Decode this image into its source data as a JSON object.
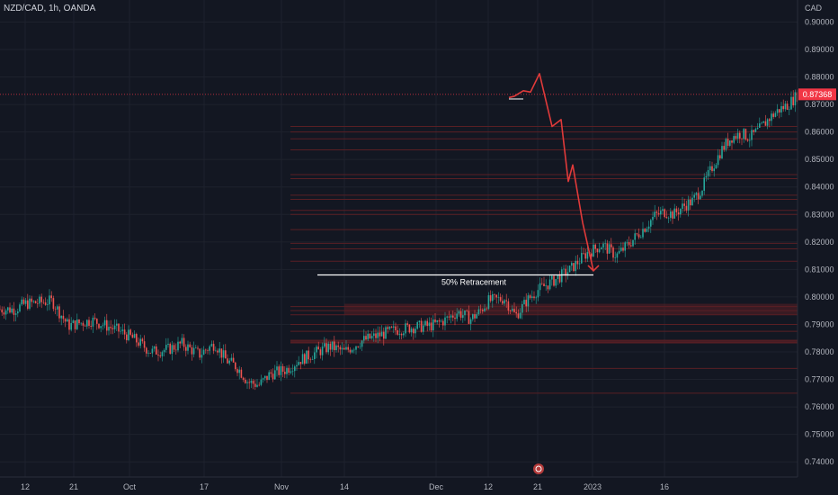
{
  "header": {
    "symbol_title": "NZD/CAD, 1h, OANDA",
    "currency": "CAD"
  },
  "colors": {
    "background": "#131722",
    "up": "#26a69a",
    "down": "#ef5350",
    "projection": "#e03a3a",
    "zone": "#5a1f24",
    "current_price_bg": "#f23645",
    "grid": "#1e222d"
  },
  "chart_data": {
    "type": "candlestick",
    "title": "NZD/CAD, 1h, OANDA",
    "y_unit": "CAD",
    "ylim": [
      0.7345,
      0.908
    ],
    "y_ticks": [
      0.74,
      0.75,
      0.76,
      0.77,
      0.78,
      0.79,
      0.8,
      0.81,
      0.82,
      0.83,
      0.84,
      0.85,
      0.86,
      0.87,
      0.88,
      0.89,
      0.9
    ],
    "y_tick_labels": [
      "0.74000",
      "0.75000",
      "0.76000",
      "0.77000",
      "0.78000",
      "0.79000",
      "0.80000",
      "0.81000",
      "0.82000",
      "0.83000",
      "0.84000",
      "0.85000",
      "0.86000",
      "0.87000",
      "0.88000",
      "0.89000",
      "0.90000"
    ],
    "x_tick_labels": [
      "12",
      "21",
      "Oct",
      "17",
      "Nov",
      "14",
      "Dec",
      "12",
      "21",
      "2023",
      "16"
    ],
    "x_tick_days": [
      12,
      21,
      30,
      47,
      61,
      75,
      91,
      103,
      112,
      122,
      137
    ],
    "x_day_range": [
      7,
      170
    ],
    "trend_path": [
      [
        7,
        0.7955
      ],
      [
        12,
        0.7975
      ],
      [
        17,
        0.7985
      ],
      [
        20,
        0.7895
      ],
      [
        24,
        0.7915
      ],
      [
        28,
        0.788
      ],
      [
        32,
        0.7835
      ],
      [
        35,
        0.78
      ],
      [
        39,
        0.781
      ],
      [
        42,
        0.783
      ],
      [
        46,
        0.779
      ],
      [
        49,
        0.783
      ],
      [
        51,
        0.777
      ],
      [
        53,
        0.7745
      ],
      [
        55,
        0.769
      ],
      [
        57,
        0.768
      ],
      [
        59,
        0.772
      ],
      [
        62,
        0.7735
      ],
      [
        65,
        0.777
      ],
      [
        69,
        0.78
      ],
      [
        72,
        0.782
      ],
      [
        75,
        0.78
      ],
      [
        78,
        0.784
      ],
      [
        81,
        0.786
      ],
      [
        84,
        0.788
      ],
      [
        87,
        0.789
      ],
      [
        90,
        0.7895
      ],
      [
        93,
        0.7915
      ],
      [
        96,
        0.7945
      ],
      [
        99,
        0.792
      ],
      [
        101,
        0.7945
      ],
      [
        103,
        0.7985
      ],
      [
        106,
        0.7995
      ],
      [
        108,
        0.793
      ],
      [
        110,
        0.7985
      ],
      [
        112,
        0.8025
      ],
      [
        115,
        0.806
      ],
      [
        118,
        0.81
      ],
      [
        121,
        0.816
      ],
      [
        124,
        0.819
      ],
      [
        127,
        0.815
      ],
      [
        130,
        0.82
      ],
      [
        133,
        0.8255
      ],
      [
        135,
        0.8295
      ],
      [
        137,
        0.831
      ],
      [
        139,
        0.83
      ],
      [
        141,
        0.833
      ],
      [
        143,
        0.835
      ],
      [
        145,
        0.84
      ],
      [
        147,
        0.847
      ],
      [
        149,
        0.8535
      ],
      [
        151,
        0.858
      ],
      [
        153,
        0.8595
      ],
      [
        155,
        0.858
      ],
      [
        157,
        0.861
      ],
      [
        159,
        0.865
      ],
      [
        161,
        0.868
      ],
      [
        163,
        0.87
      ],
      [
        165,
        0.8735
      ],
      [
        167,
        0.874
      ],
      [
        168,
        0.8705
      ],
      [
        170,
        0.869
      ]
    ],
    "projection_path": [
      [
        0.8725,
        0
      ],
      [
        0.873,
        1
      ],
      [
        0.875,
        2
      ],
      [
        0.8745,
        3
      ],
      [
        0.8812,
        4
      ],
      [
        0.862,
        5
      ],
      [
        0.8645,
        6
      ],
      [
        0.842,
        7
      ],
      [
        0.848,
        8
      ],
      [
        0.827,
        9
      ],
      [
        0.8095,
        10
      ]
    ],
    "support_zones": [
      0.8535,
      0.8575,
      0.86,
      0.862,
      0.8445,
      0.843,
      0.837,
      0.8355,
      0.8315,
      0.83,
      0.8245,
      0.8195,
      0.8175,
      0.813,
      0.7965,
      0.795,
      0.7935,
      0.79,
      0.7875,
      0.784,
      0.7835,
      0.774,
      0.765
    ],
    "retracement": {
      "label": "50% Retracement",
      "price": 0.808
    },
    "current_price": {
      "label": "0.87368",
      "value": 0.87368
    }
  }
}
